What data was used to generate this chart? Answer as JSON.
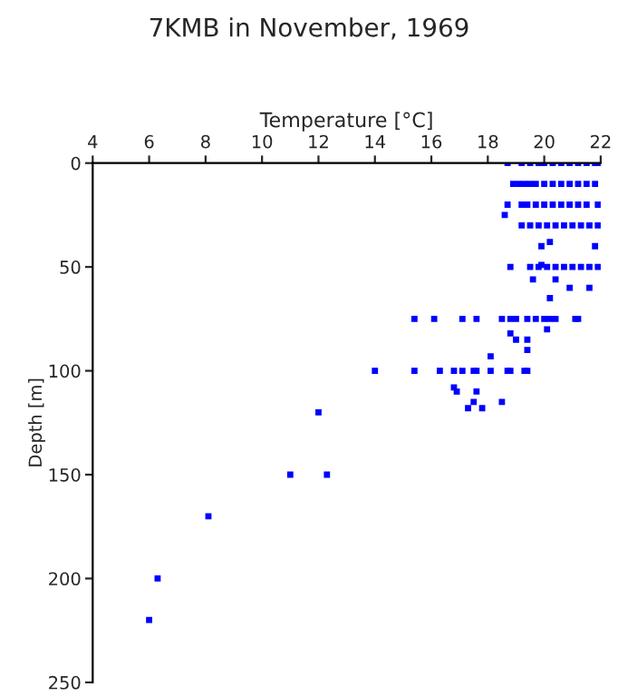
{
  "chart_data": {
    "type": "scatter",
    "title": "7KMB in November, 1969",
    "xlabel": "Temperature [°C]",
    "ylabel": "Depth [m]",
    "xlim": [
      4,
      22
    ],
    "xticks": [
      4,
      6,
      8,
      10,
      12,
      14,
      16,
      18,
      20,
      22
    ],
    "ylim": [
      250,
      0
    ],
    "yticks": [
      0,
      50,
      100,
      150,
      200,
      250
    ],
    "grid": false,
    "marker": "square",
    "series": [
      {
        "color": "#0000ff",
        "x": [
          18.7,
          19.2,
          19.5,
          19.8,
          20.0,
          20.3,
          20.6,
          20.9,
          21.2,
          21.5,
          21.8,
          21.9,
          18.9,
          19.1,
          19.3,
          19.5,
          19.7,
          20.0,
          20.3,
          20.6,
          20.9,
          21.2,
          21.5,
          21.8,
          18.7,
          19.2,
          19.4,
          19.7,
          20.0,
          20.3,
          20.6,
          20.9,
          21.2,
          21.5,
          21.9,
          18.6,
          19.2,
          19.5,
          19.8,
          20.1,
          20.4,
          20.7,
          21.0,
          21.3,
          21.6,
          21.9,
          20.2,
          19.9,
          21.8,
          19.9,
          18.8,
          19.5,
          19.8,
          20.1,
          20.4,
          20.7,
          21.0,
          21.3,
          21.6,
          21.9,
          19.6,
          20.4,
          20.9,
          21.6,
          20.2,
          15.4,
          16.1,
          17.1,
          17.6,
          18.5,
          18.8,
          19.0,
          19.4,
          19.7,
          20.0,
          20.2,
          20.4,
          21.1,
          21.2,
          20.1,
          18.8,
          19.0,
          19.4,
          19.4,
          18.1,
          14.0,
          15.4,
          16.3,
          16.8,
          17.1,
          17.5,
          17.6,
          18.1,
          18.7,
          18.8,
          19.3,
          19.4,
          16.8,
          16.9,
          17.6,
          17.5,
          18.5,
          17.3,
          17.8,
          12.0,
          11.0,
          12.3,
          8.1,
          6.3,
          6.0
        ],
        "values": [
          0,
          0,
          0,
          0,
          0,
          0,
          0,
          0,
          0,
          0,
          0,
          0,
          10,
          10,
          10,
          10,
          10,
          10,
          10,
          10,
          10,
          10,
          10,
          10,
          20,
          20,
          20,
          20,
          20,
          20,
          20,
          20,
          20,
          20,
          20,
          25,
          30,
          30,
          30,
          30,
          30,
          30,
          30,
          30,
          30,
          30,
          38,
          40,
          40,
          49,
          50,
          50,
          50,
          50,
          50,
          50,
          50,
          50,
          50,
          50,
          56,
          56,
          60,
          60,
          65,
          75,
          75,
          75,
          75,
          75,
          75,
          75,
          75,
          75,
          75,
          75,
          75,
          75,
          75,
          80,
          82,
          85,
          85,
          90,
          93,
          100,
          100,
          100,
          100,
          100,
          100,
          100,
          100,
          100,
          100,
          100,
          100,
          108,
          110,
          110,
          115,
          115,
          118,
          118,
          120,
          150,
          150,
          170,
          200,
          220
        ]
      }
    ]
  }
}
